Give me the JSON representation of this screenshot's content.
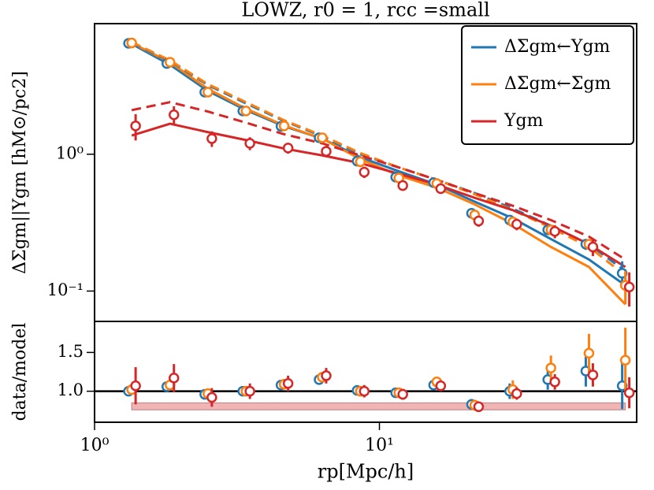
{
  "chart_data": [
    {
      "type": "line",
      "title": "LOWZ, r0 = 1, rcc =small",
      "ylabel": "ΔΣgm||Υgm [hM⊙/pc2]",
      "log_x": true,
      "log_y": true,
      "xlim": [
        1,
        80
      ],
      "ylim": [
        0.06,
        9
      ],
      "yticks": [
        {
          "value": 1,
          "label": "10⁰"
        },
        {
          "value": 0.1,
          "label": "10⁻¹"
        }
      ],
      "legend": "upper right",
      "x": [
        1.35,
        1.84,
        2.5,
        3.4,
        4.63,
        6.3,
        8.57,
        11.7,
        15.9,
        21.6,
        29.4,
        40,
        54.4,
        73
      ],
      "series": [
        {
          "name": "ΔΣgm←Υgm",
          "color": "#1f77b4",
          "values": [
            6.46,
            4.6,
            2.84,
            2.07,
            1.6,
            1.32,
            0.89,
            0.68,
            0.62,
            0.37,
            0.33,
            0.28,
            0.22,
            0.135
          ],
          "errors": [
            0.2,
            0.15,
            0.1,
            0.08,
            0.06,
            0.05,
            0.04,
            0.03,
            0.03,
            0.02,
            0.02,
            0.02,
            0.02,
            0.03
          ]
        },
        {
          "name": "ΔΣgm←Σgm",
          "color": "#ff7f0e",
          "values": [
            6.5,
            4.7,
            2.84,
            2.07,
            1.61,
            1.32,
            0.88,
            0.67,
            0.61,
            0.36,
            0.32,
            0.28,
            0.22,
            0.11
          ],
          "errors": [
            0.2,
            0.15,
            0.1,
            0.08,
            0.06,
            0.05,
            0.04,
            0.03,
            0.03,
            0.02,
            0.02,
            0.02,
            0.02,
            0.03
          ]
        },
        {
          "name": "Υgm",
          "color": "#d62728",
          "values": [
            1.61,
            1.94,
            1.3,
            1.2,
            1.11,
            1.05,
            0.74,
            0.59,
            0.56,
            0.325,
            0.308,
            0.273,
            0.21,
            0.107
          ],
          "errors": [
            0.35,
            0.3,
            0.17,
            0.13,
            0.1,
            0.1,
            0.07,
            0.05,
            0.04,
            0.03,
            0.03,
            0.03,
            0.03,
            0.03
          ]
        }
      ],
      "models": [
        {
          "color": "#1f77b4",
          "dashed": false,
          "values": [
            6.4,
            4.5,
            2.9,
            2.1,
            1.6,
            1.3,
            0.95,
            0.75,
            0.6,
            0.45,
            0.34,
            0.24,
            0.17,
            0.11
          ]
        },
        {
          "color": "#ff7f0e",
          "dashed": false,
          "values": [
            6.5,
            4.7,
            3.0,
            2.15,
            1.62,
            1.3,
            0.92,
            0.7,
            0.57,
            0.43,
            0.31,
            0.21,
            0.15,
            0.08
          ]
        },
        {
          "color": "#1f77b4",
          "dashed": true,
          "values": [
            6.5,
            4.8,
            3.2,
            2.35,
            1.75,
            1.35,
            1.0,
            0.8,
            0.65,
            0.52,
            0.4,
            0.3,
            0.22,
            0.14
          ]
        },
        {
          "color": "#ff7f0e",
          "dashed": true,
          "values": [
            6.6,
            4.85,
            3.25,
            2.4,
            1.77,
            1.37,
            1.02,
            0.8,
            0.65,
            0.51,
            0.39,
            0.29,
            0.21,
            0.13
          ]
        },
        {
          "color": "#d62728",
          "dashed": false,
          "values": [
            1.37,
            1.67,
            1.45,
            1.27,
            1.1,
            0.98,
            0.86,
            0.72,
            0.6,
            0.48,
            0.39,
            0.3,
            0.22,
            0.15
          ]
        },
        {
          "color": "#d62728",
          "dashed": true,
          "values": [
            2.1,
            2.4,
            2.05,
            1.7,
            1.4,
            1.2,
            0.98,
            0.8,
            0.65,
            0.52,
            0.42,
            0.33,
            0.25,
            0.17
          ]
        }
      ]
    },
    {
      "type": "scatter",
      "ylabel": "data/model",
      "xlabel": "rp[Mpc/h]",
      "log_x": true,
      "xlim": [
        1,
        80
      ],
      "ylim": [
        0.6,
        1.9
      ],
      "xticks": [
        {
          "value": 1,
          "label": "10⁰"
        },
        {
          "value": 10,
          "label": "10¹"
        }
      ],
      "yticks": [
        {
          "value": 1,
          "label": "1.0"
        },
        1.5
      ],
      "hline": 1,
      "band": [
        0.76,
        0.85
      ],
      "band_x": [
        1.35,
        73
      ],
      "x": [
        1.35,
        1.84,
        2.5,
        3.4,
        4.63,
        6.3,
        8.57,
        11.7,
        15.9,
        21.6,
        29.4,
        40,
        54.4,
        73
      ],
      "series": [
        {
          "color": "#1f77b4",
          "values": [
            1.0,
            1.06,
            0.96,
            1.0,
            1.08,
            1.15,
            1.01,
            0.98,
            1.08,
            0.83,
            1.0,
            1.15,
            1.26,
            1.07
          ],
          "errors": [
            0.04,
            0.04,
            0.05,
            0.05,
            0.06,
            0.06,
            0.06,
            0.06,
            0.06,
            0.07,
            0.1,
            0.13,
            0.2,
            0.3
          ]
        },
        {
          "color": "#ff7f0e",
          "values": [
            1.02,
            1.08,
            0.97,
            1.0,
            1.09,
            1.18,
            1.0,
            0.98,
            1.12,
            0.82,
            1.02,
            1.3,
            1.49,
            1.4
          ],
          "errors": [
            0.04,
            0.04,
            0.05,
            0.05,
            0.06,
            0.06,
            0.06,
            0.06,
            0.06,
            0.07,
            0.12,
            0.16,
            0.25,
            0.42
          ]
        },
        {
          "color": "#d62728",
          "values": [
            1.07,
            1.17,
            0.92,
            1.0,
            1.1,
            1.2,
            1.0,
            0.96,
            1.07,
            0.8,
            0.97,
            1.12,
            1.21,
            0.98
          ],
          "errors": [
            0.24,
            0.18,
            0.12,
            0.1,
            0.1,
            0.1,
            0.08,
            0.07,
            0.07,
            0.06,
            0.08,
            0.1,
            0.15,
            0.2
          ]
        }
      ]
    }
  ]
}
